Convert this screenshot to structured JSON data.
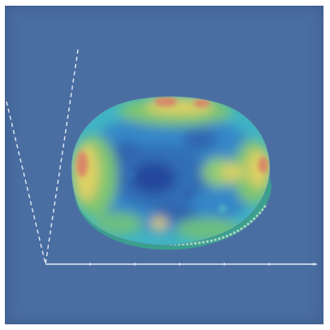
{
  "viewport": {
    "background": "#4a6ea2",
    "axis_color": "#e8ecf4"
  },
  "colormap": {
    "low": "#1f3f9a",
    "mid_low": "#2f86c8",
    "mid": "#3ab6c4",
    "mid_high": "#7cc96a",
    "high": "#e8d65a",
    "peak": "#e2875f"
  },
  "surface": {
    "rim_color": "#3aa48c"
  }
}
